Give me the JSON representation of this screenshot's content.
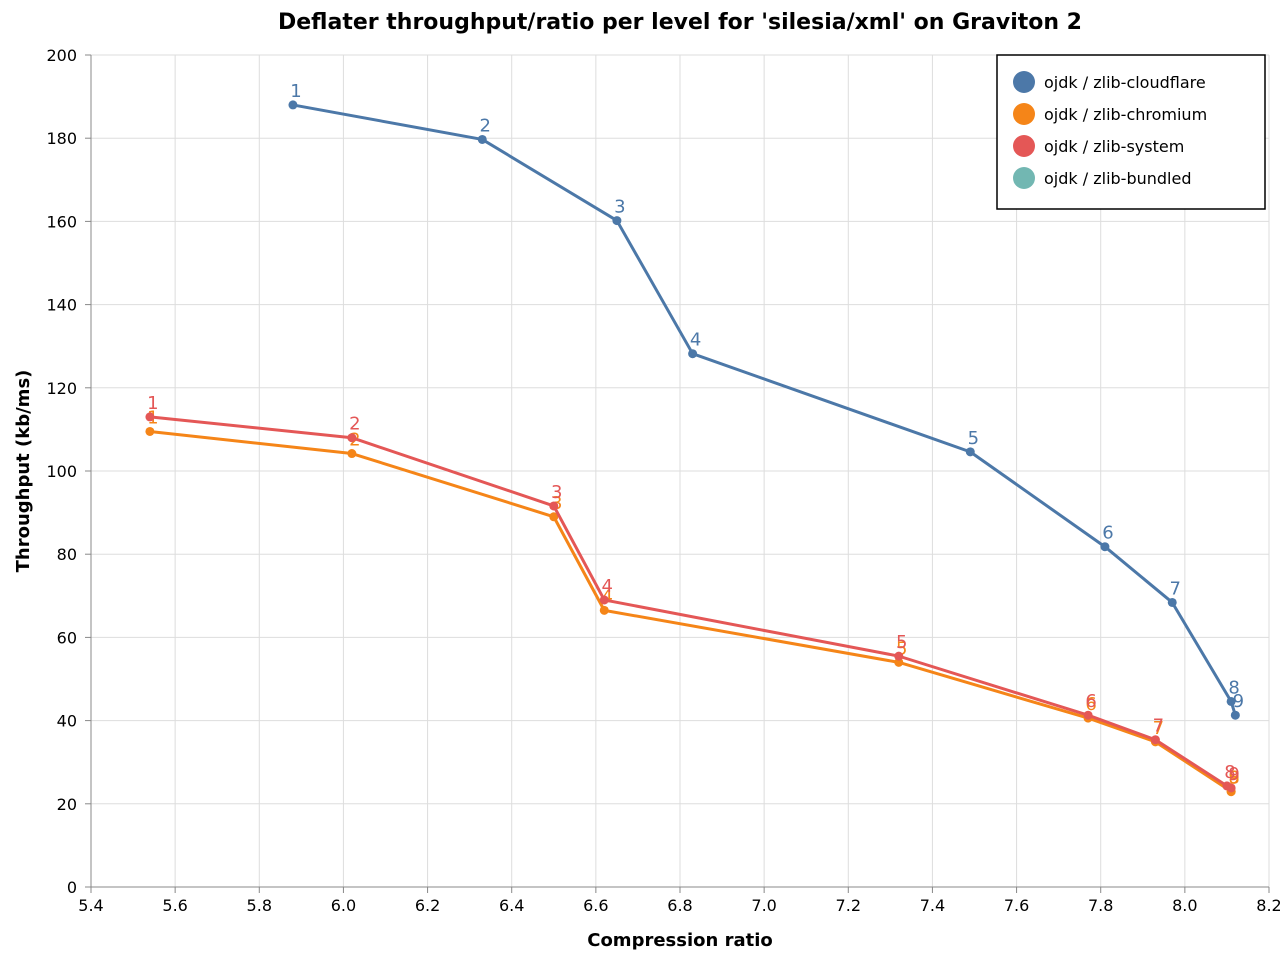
{
  "chart_data": {
    "type": "line",
    "title": "Deflater throughput/ratio per level for 'silesia/xml' on Graviton 2",
    "xlabel": "Compression ratio",
    "ylabel": "Throughput (kb/ms)",
    "xlim": [
      5.4,
      8.2
    ],
    "ylim": [
      0,
      200
    ],
    "xticks": [
      "5.4",
      "5.6",
      "5.8",
      "6.0",
      "6.2",
      "6.4",
      "6.6",
      "6.8",
      "7.0",
      "7.2",
      "7.4",
      "7.6",
      "7.8",
      "8.0",
      "8.2"
    ],
    "yticks": [
      "0",
      "20",
      "40",
      "60",
      "80",
      "100",
      "120",
      "140",
      "160",
      "180",
      "200"
    ],
    "grid": true,
    "legend_position": "top-right",
    "series": [
      {
        "name": "ojdk / zlib-cloudflare",
        "color": "#4c78a8",
        "points": [
          {
            "x": 5.88,
            "y": 188.0,
            "label": "1"
          },
          {
            "x": 6.33,
            "y": 179.7,
            "label": "2"
          },
          {
            "x": 6.65,
            "y": 160.2,
            "label": "3"
          },
          {
            "x": 6.83,
            "y": 128.2,
            "label": "4"
          },
          {
            "x": 7.49,
            "y": 104.6,
            "label": "5"
          },
          {
            "x": 7.81,
            "y": 81.8,
            "label": "6"
          },
          {
            "x": 7.97,
            "y": 68.4,
            "label": "7"
          },
          {
            "x": 8.11,
            "y": 44.6,
            "label": "8"
          },
          {
            "x": 8.12,
            "y": 41.3,
            "label": "9"
          }
        ]
      },
      {
        "name": "ojdk / zlib-chromium",
        "color": "#f58518",
        "points": [
          {
            "x": 5.54,
            "y": 109.5,
            "label": "1"
          },
          {
            "x": 6.02,
            "y": 104.2,
            "label": "2"
          },
          {
            "x": 6.5,
            "y": 89.0,
            "label": "3"
          },
          {
            "x": 6.62,
            "y": 66.5,
            "label": "4"
          },
          {
            "x": 7.32,
            "y": 54.0,
            "label": "5"
          },
          {
            "x": 7.77,
            "y": 40.6,
            "label": "6"
          },
          {
            "x": 7.93,
            "y": 34.9,
            "label": "7"
          },
          {
            "x": 8.11,
            "y": 23.0,
            "label": "8"
          },
          {
            "x": 8.11,
            "y": 22.9,
            "label": "9"
          }
        ]
      },
      {
        "name": "ojdk / zlib-system",
        "color": "#e45756",
        "points": [
          {
            "x": 5.54,
            "y": 113.0,
            "label": "1"
          },
          {
            "x": 6.02,
            "y": 108.0,
            "label": "2"
          },
          {
            "x": 6.5,
            "y": 91.6,
            "label": "3"
          },
          {
            "x": 6.62,
            "y": 69.0,
            "label": "4"
          },
          {
            "x": 7.32,
            "y": 55.5,
            "label": "5"
          },
          {
            "x": 7.77,
            "y": 41.3,
            "label": "6"
          },
          {
            "x": 7.93,
            "y": 35.4,
            "label": "7"
          },
          {
            "x": 8.1,
            "y": 24.3,
            "label": "8"
          },
          {
            "x": 8.11,
            "y": 23.8,
            "label": "9"
          }
        ]
      },
      {
        "name": "ojdk / zlib-bundled",
        "color": "#72b7b2",
        "points": []
      }
    ]
  }
}
